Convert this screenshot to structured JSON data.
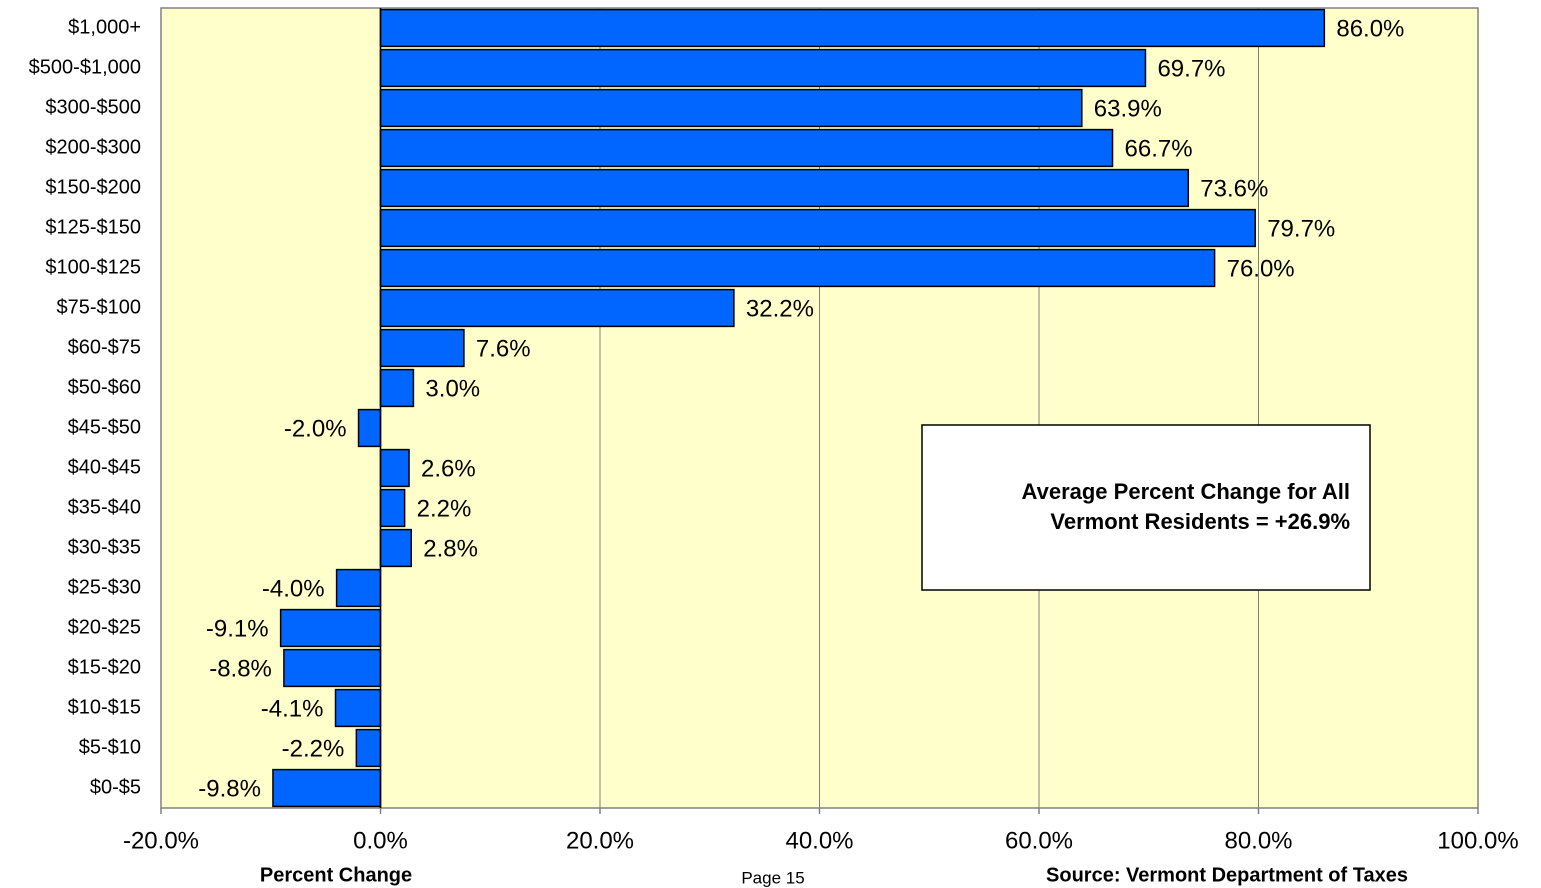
{
  "chart_data": {
    "type": "barh",
    "categories": [
      "$1,000+",
      "$500-$1,000",
      "$300-$500",
      "$200-$300",
      "$150-$200",
      "$125-$150",
      "$100-$125",
      "$75-$100",
      "$60-$75",
      "$50-$60",
      "$45-$50",
      "$40-$45",
      "$35-$40",
      "$30-$35",
      "$25-$30",
      "$20-$25",
      "$15-$20",
      "$10-$15",
      "$5-$10",
      "$0-$5"
    ],
    "values": [
      86.0,
      69.7,
      63.9,
      66.7,
      73.6,
      79.7,
      76.0,
      32.2,
      7.6,
      3.0,
      -2.0,
      2.6,
      2.2,
      2.8,
      -4.0,
      -9.1,
      -8.8,
      -4.1,
      -2.2,
      -9.8
    ],
    "value_labels": [
      "86.0%",
      "69.7%",
      "63.9%",
      "66.7%",
      "73.6%",
      "79.7%",
      "76.0%",
      "32.2%",
      "7.6%",
      "3.0%",
      "-2.0%",
      "2.6%",
      "2.2%",
      "2.8%",
      "-4.0%",
      "-9.1%",
      "-8.8%",
      "-4.1%",
      "-2.2%",
      "-9.8%"
    ],
    "color": "#0066ff",
    "xlim": [
      -20,
      100
    ],
    "xticks": [
      {
        "value": -20,
        "label": "-20.0%"
      },
      {
        "value": 0,
        "label": "0.0%"
      },
      {
        "value": 20,
        "label": "20.0%"
      },
      {
        "value": 40,
        "label": "40.0%"
      },
      {
        "value": 60,
        "label": "60.0%"
      },
      {
        "value": 80,
        "label": "80.0%"
      },
      {
        "value": 100,
        "label": "100.0%"
      }
    ],
    "grid": true,
    "xlabel": "Percent Change",
    "page": "Page 15",
    "source": "Source:  Vermont Department of Taxes",
    "annotation": [
      "Average Percent Change for All",
      "Vermont Residents =  +26.9%"
    ]
  }
}
